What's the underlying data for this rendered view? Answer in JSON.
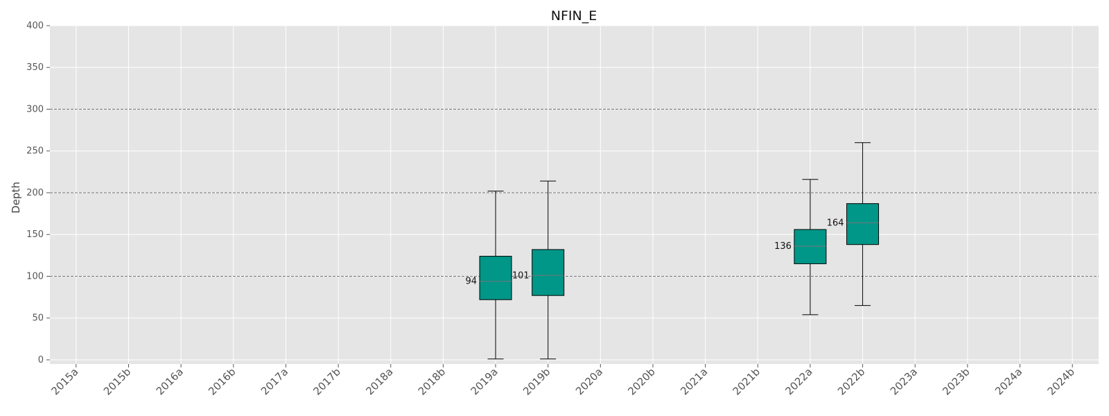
{
  "chart_data": {
    "type": "box",
    "title": "NFIN_E",
    "xlabel": "",
    "ylabel": "Depth",
    "ylim": [
      -5,
      400
    ],
    "yticks": [
      0,
      50,
      100,
      150,
      200,
      250,
      300,
      350,
      400
    ],
    "categories": [
      "2015a",
      "2015b",
      "2016a",
      "2016b",
      "2017a",
      "2017b",
      "2018a",
      "2018b",
      "2019a",
      "2019b",
      "2020a",
      "2020b",
      "2021a",
      "2021b",
      "2022a",
      "2022b",
      "2023a",
      "2023b",
      "2024a",
      "2024b"
    ],
    "boxes": [
      {
        "category": "2019a",
        "whisker_low": 1,
        "q1": 72,
        "median": 94,
        "q3": 124,
        "whisker_high": 202,
        "median_label": "94"
      },
      {
        "category": "2019b",
        "whisker_low": 1,
        "q1": 77,
        "median": 101,
        "q3": 132,
        "whisker_high": 214,
        "median_label": "101"
      },
      {
        "category": "2022a",
        "whisker_low": 54,
        "q1": 115,
        "median": 136,
        "q3": 156,
        "whisker_high": 216,
        "median_label": "136"
      },
      {
        "category": "2022b",
        "whisker_low": 65,
        "q1": 138,
        "median": 164,
        "q3": 187,
        "whisker_high": 260,
        "median_label": "164"
      }
    ],
    "reference_lines": [
      100,
      200,
      300
    ],
    "grid": true,
    "legend": "none",
    "colors": {
      "background": "#e5e5e5",
      "box_fill": "#009688",
      "box_edge": "#000000",
      "median_line": "#777777",
      "grid": "#ffffff",
      "reference_line": "#777777"
    }
  }
}
